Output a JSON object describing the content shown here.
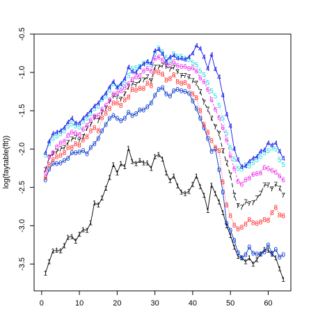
{
  "chart_data": {
    "type": "line",
    "title": "",
    "xlabel": "",
    "ylabel": "log(faytable(flt))",
    "xlim": [
      -2,
      66
    ],
    "ylim": [
      -3.85,
      -0.5
    ],
    "xticks": [
      0,
      10,
      20,
      30,
      40,
      50,
      60
    ],
    "yticks": [
      -3.5,
      -3.0,
      -2.5,
      -2.0,
      -1.5,
      -1.0,
      -0.5
    ],
    "xtick_labels": [
      "0",
      "10",
      "20",
      "30",
      "40",
      "50",
      "60"
    ],
    "ytick_labels": [
      "-3.5",
      "-3.0",
      "-2.5",
      "-2.0",
      "-1.5",
      "-1.0",
      "-0.5"
    ],
    "grid": false,
    "legend": "none",
    "series": [
      {
        "marker": "1",
        "color": "#000000",
        "dash": "",
        "x": [
          1,
          2,
          3,
          4,
          5,
          6,
          7,
          8,
          9,
          10,
          11,
          12,
          13,
          14,
          15,
          16,
          17,
          18,
          19,
          20,
          21,
          22,
          23,
          24,
          25,
          26,
          27,
          28,
          29,
          30,
          31,
          32,
          33,
          34,
          35,
          36,
          37,
          38,
          39,
          40,
          41,
          42,
          43,
          44,
          45,
          46,
          47,
          48,
          49,
          50,
          51,
          52,
          53,
          54,
          55,
          56,
          57,
          58,
          59,
          60,
          61,
          62,
          63,
          64
        ],
        "y": [
          -3.62,
          -3.47,
          -3.33,
          -3.32,
          -3.33,
          -3.26,
          -3.15,
          -3.14,
          -3.2,
          -3.11,
          -3.05,
          -3.06,
          -2.96,
          -2.7,
          -2.73,
          -2.64,
          -2.51,
          -2.37,
          -2.2,
          -2.31,
          -2.19,
          -2.23,
          -1.99,
          -2.16,
          -2.19,
          -2.15,
          -2.18,
          -2.18,
          -2.25,
          -2.1,
          -2.07,
          -2.13,
          -2.31,
          -2.41,
          -2.35,
          -2.48,
          -2.56,
          -2.58,
          -2.55,
          -2.46,
          -2.35,
          -2.49,
          -2.6,
          -2.8,
          -2.47,
          -2.58,
          -2.69,
          -2.83,
          -3.0,
          -3.13,
          -3.28,
          -3.4,
          -3.42,
          -3.47,
          -3.42,
          -3.5,
          -3.44,
          -3.37,
          -3.31,
          -3.32,
          -3.37,
          -3.42,
          -3.56,
          -3.7
        ]
      },
      {
        "marker": "0",
        "color": "#0033cc",
        "dash": "",
        "x": [
          1,
          2,
          3,
          4,
          5,
          6,
          7,
          8,
          9,
          10,
          11,
          12,
          13,
          14,
          15,
          16,
          17,
          18,
          19,
          20,
          21,
          22,
          23,
          24,
          25,
          26,
          27,
          28,
          29,
          30,
          31,
          32,
          33,
          34,
          35,
          36,
          37,
          38,
          39,
          40,
          41,
          42,
          43,
          44,
          45,
          46,
          47,
          48,
          49,
          50,
          51,
          52,
          53,
          54,
          55,
          56,
          57,
          58,
          59,
          60,
          61,
          62,
          63,
          64
        ],
        "y": [
          -2.4,
          -2.26,
          -2.19,
          -2.19,
          -2.18,
          -2.15,
          -2.12,
          -2.05,
          -2.05,
          -2.04,
          -2.02,
          -2.06,
          -1.98,
          -1.93,
          -1.86,
          -1.76,
          -1.68,
          -1.6,
          -1.56,
          -1.6,
          -1.63,
          -1.6,
          -1.52,
          -1.56,
          -1.54,
          -1.49,
          -1.49,
          -1.45,
          -1.4,
          -1.3,
          -1.22,
          -1.2,
          -1.28,
          -1.31,
          -1.24,
          -1.22,
          -1.24,
          -1.25,
          -1.27,
          -1.37,
          -1.47,
          -1.6,
          -1.72,
          -1.86,
          -2.03,
          -2.0,
          -2.27,
          -2.56,
          -2.97,
          -3.06,
          -3.19,
          -3.35,
          -3.42,
          -3.38,
          -3.28,
          -3.36,
          -3.37,
          -3.37,
          -3.34,
          -3.25,
          -3.36,
          -3.31,
          -3.41,
          -3.38
        ]
      },
      {
        "marker": "8",
        "color": "#ff2222",
        "dash": "1,2",
        "x": [
          1,
          2,
          3,
          4,
          5,
          6,
          7,
          8,
          9,
          10,
          11,
          12,
          13,
          14,
          15,
          16,
          17,
          18,
          19,
          20,
          21,
          22,
          23,
          24,
          25,
          26,
          27,
          28,
          29,
          30,
          31,
          32,
          33,
          34,
          35,
          36,
          37,
          38,
          39,
          40,
          41,
          42,
          43,
          44,
          45,
          46,
          47,
          48,
          49,
          50,
          51,
          52,
          53,
          54,
          55,
          56,
          57,
          58,
          59,
          60,
          61,
          62,
          63,
          64
        ],
        "y": [
          -2.37,
          -2.2,
          -2.14,
          -2.1,
          -2.08,
          -2.05,
          -1.98,
          -1.98,
          -1.93,
          -1.95,
          -1.88,
          -1.84,
          -1.76,
          -1.72,
          -1.76,
          -1.59,
          -1.53,
          -1.47,
          -1.4,
          -1.4,
          -1.43,
          -1.36,
          -1.32,
          -1.22,
          -1.23,
          -1.21,
          -1.21,
          -1.14,
          -1.17,
          -0.98,
          -1.0,
          -1.02,
          -1.1,
          -1.08,
          -1.03,
          -1.12,
          -1.14,
          -1.13,
          -1.18,
          -1.28,
          -1.33,
          -1.5,
          -1.68,
          -1.78,
          -1.89,
          -1.98,
          -2.02,
          -2.43,
          -2.73,
          -2.87,
          -2.99,
          -3.04,
          -3.02,
          -2.98,
          -2.92,
          -2.96,
          -2.97,
          -2.95,
          -2.92,
          -2.93,
          -2.83,
          -2.76,
          -2.86,
          -2.87
        ]
      },
      {
        "marker": "7",
        "color": "#000000",
        "dash": "6,4",
        "x": [
          1,
          2,
          3,
          4,
          5,
          6,
          7,
          8,
          9,
          10,
          11,
          12,
          13,
          14,
          15,
          16,
          17,
          18,
          19,
          20,
          21,
          22,
          23,
          24,
          25,
          26,
          27,
          28,
          29,
          30,
          31,
          32,
          33,
          34,
          35,
          36,
          37,
          38,
          39,
          40,
          41,
          42,
          43,
          44,
          45,
          46,
          47,
          48,
          49,
          50,
          51,
          52,
          53,
          54,
          55,
          56,
          57,
          58,
          59,
          60,
          61,
          62,
          63,
          64
        ],
        "y": [
          -2.27,
          -2.11,
          -2.06,
          -2.03,
          -2.0,
          -1.98,
          -1.91,
          -1.87,
          -1.85,
          -1.88,
          -1.84,
          -1.73,
          -1.68,
          -1.59,
          -1.63,
          -1.52,
          -1.47,
          -1.38,
          -1.31,
          -1.32,
          -1.35,
          -1.28,
          -1.19,
          -1.15,
          -1.16,
          -1.11,
          -1.1,
          -1.06,
          -1.11,
          -0.93,
          -0.93,
          -0.91,
          -0.92,
          -0.96,
          -0.93,
          -0.99,
          -1.04,
          -1.04,
          -1.06,
          -1.11,
          -1.14,
          -1.25,
          -1.39,
          -1.48,
          -1.6,
          -1.71,
          -1.8,
          -2.02,
          -2.18,
          -2.34,
          -2.6,
          -2.74,
          -2.76,
          -2.69,
          -2.71,
          -2.7,
          -2.64,
          -2.58,
          -2.47,
          -2.47,
          -2.52,
          -2.46,
          -2.51,
          -2.6
        ]
      },
      {
        "marker": "6",
        "color": "#ee22ee",
        "dash": "3,3",
        "x": [
          1,
          2,
          3,
          4,
          5,
          6,
          7,
          8,
          9,
          10,
          11,
          12,
          13,
          14,
          15,
          16,
          17,
          18,
          19,
          20,
          21,
          22,
          23,
          24,
          25,
          26,
          27,
          28,
          29,
          30,
          31,
          32,
          33,
          34,
          35,
          36,
          37,
          38,
          39,
          40,
          41,
          42,
          43,
          44,
          45,
          46,
          47,
          48,
          49,
          50,
          51,
          52,
          53,
          54,
          55,
          56,
          57,
          58,
          59,
          60,
          61,
          62,
          63,
          64
        ],
        "y": [
          -2.3,
          -2.1,
          -2.05,
          -1.97,
          -1.92,
          -1.9,
          -1.82,
          -1.78,
          -1.79,
          -1.81,
          -1.74,
          -1.69,
          -1.62,
          -1.57,
          -1.56,
          -1.48,
          -1.43,
          -1.36,
          -1.28,
          -1.27,
          -1.24,
          -1.2,
          -1.15,
          -1.09,
          -1.06,
          -1.04,
          -0.98,
          -0.95,
          -0.98,
          -0.82,
          -0.8,
          -0.84,
          -0.88,
          -0.9,
          -0.86,
          -0.91,
          -0.92,
          -0.92,
          -0.95,
          -0.94,
          -0.98,
          -1.07,
          -1.12,
          -1.22,
          -1.36,
          -1.48,
          -1.59,
          -1.72,
          -1.88,
          -2.09,
          -2.25,
          -2.42,
          -2.46,
          -2.4,
          -2.38,
          -2.33,
          -2.32,
          -2.31,
          -2.24,
          -2.25,
          -2.28,
          -2.3,
          -2.35,
          -2.4
        ]
      },
      {
        "marker": "5",
        "color": "#22dddd",
        "dash": "1,3",
        "x": [
          1,
          2,
          3,
          4,
          5,
          6,
          7,
          8,
          9,
          10,
          11,
          12,
          13,
          14,
          15,
          16,
          17,
          18,
          19,
          20,
          21,
          22,
          23,
          24,
          25,
          26,
          27,
          28,
          29,
          30,
          31,
          32,
          33,
          34,
          35,
          36,
          37,
          38,
          39,
          40,
          41,
          42,
          43,
          44,
          45,
          46,
          47,
          48,
          49,
          50,
          51,
          52,
          53,
          54,
          55,
          56,
          57,
          58,
          59,
          60,
          61,
          62,
          63,
          64
        ],
        "y": [
          -2.08,
          -1.93,
          -1.86,
          -1.83,
          -1.8,
          -1.76,
          -1.7,
          -1.67,
          -1.7,
          -1.71,
          -1.64,
          -1.6,
          -1.54,
          -1.47,
          -1.44,
          -1.35,
          -1.31,
          -1.23,
          -1.15,
          -1.19,
          -1.17,
          -1.13,
          -1.04,
          -0.95,
          -0.94,
          -0.92,
          -0.88,
          -0.87,
          -0.9,
          -0.75,
          -0.68,
          -0.73,
          -0.81,
          -0.84,
          -0.76,
          -0.79,
          -0.79,
          -0.82,
          -0.83,
          -0.87,
          -0.9,
          -0.98,
          -1.03,
          -1.13,
          -1.24,
          -1.31,
          -1.43,
          -1.6,
          -1.79,
          -1.98,
          -2.13,
          -2.25,
          -2.26,
          -2.2,
          -2.22,
          -2.18,
          -2.14,
          -2.1,
          -2.05,
          -2.02,
          -1.99,
          -2.0,
          -2.14,
          -2.2
        ]
      },
      {
        "marker": "4",
        "color": "#1111ee",
        "dash": "",
        "x": [
          1,
          2,
          3,
          4,
          5,
          6,
          7,
          8,
          9,
          10,
          11,
          12,
          13,
          14,
          15,
          16,
          17,
          18,
          19,
          20,
          21,
          22,
          23,
          24,
          25,
          26,
          27,
          28,
          29,
          30,
          31,
          32,
          33,
          34,
          35,
          36,
          37,
          38,
          39,
          40,
          41,
          42,
          43,
          44,
          45,
          46,
          47,
          48,
          49,
          50,
          51,
          52,
          53,
          54,
          55,
          56,
          57,
          58,
          59,
          60,
          61,
          62,
          63,
          64
        ],
        "y": [
          -2.05,
          -1.9,
          -1.8,
          -1.78,
          -1.76,
          -1.72,
          -1.65,
          -1.6,
          -1.66,
          -1.66,
          -1.6,
          -1.55,
          -1.5,
          -1.44,
          -1.4,
          -1.33,
          -1.27,
          -1.19,
          -1.12,
          -1.2,
          -1.15,
          -1.08,
          -0.93,
          -0.99,
          -1.0,
          -0.93,
          -0.89,
          -0.86,
          -0.88,
          -0.72,
          -0.7,
          -0.76,
          -0.86,
          -0.8,
          -0.78,
          -0.82,
          -0.82,
          -0.83,
          -0.8,
          -0.75,
          -0.65,
          -0.69,
          -0.8,
          -0.95,
          -0.77,
          -0.96,
          -1.06,
          -1.3,
          -1.55,
          -1.7,
          -2.0,
          -2.14,
          -2.23,
          -2.22,
          -2.16,
          -2.12,
          -2.1,
          -2.03,
          -2.01,
          -1.92,
          -1.95,
          -1.92,
          -2.03,
          -2.12
        ]
      }
    ]
  }
}
